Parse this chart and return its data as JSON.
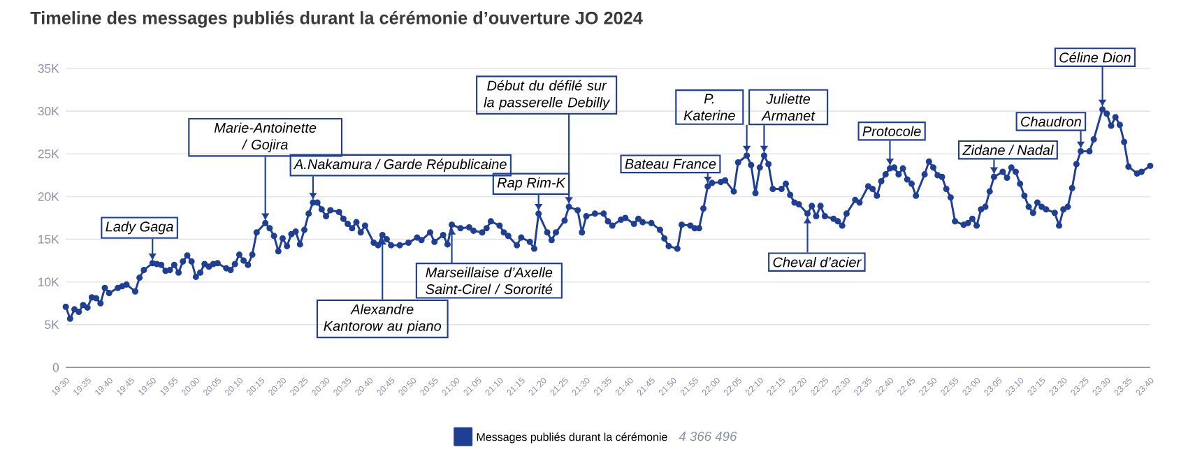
{
  "chart_data": {
    "type": "line",
    "title": "Timeline des messages publiés durant la cérémonie d’ouverture JO 2024",
    "x": [
      19.5,
      19.5167,
      19.5333,
      19.55,
      19.5667,
      19.5833,
      19.6,
      19.6167,
      19.6333,
      19.65,
      19.6667,
      19.7,
      19.7167,
      19.7333,
      19.7667,
      19.7833,
      19.8,
      19.8333,
      19.85,
      19.8667,
      19.8833,
      19.9,
      19.9167,
      19.9333,
      19.95,
      19.9667,
      19.9833,
      20,
      20.0167,
      20.0333,
      20.05,
      20.0667,
      20.0833,
      20.1167,
      20.1333,
      20.15,
      20.1667,
      20.1833,
      20.2,
      20.2167,
      20.2333,
      20.2667,
      20.2833,
      20.3,
      20.3167,
      20.3333,
      20.35,
      20.3667,
      20.3833,
      20.4,
      20.4167,
      20.4333,
      20.45,
      20.4667,
      20.4833,
      20.5,
      20.5167,
      20.55,
      20.5667,
      20.5833,
      20.6,
      20.6167,
      20.6333,
      20.65,
      20.6833,
      20.7,
      20.7167,
      20.7333,
      20.75,
      20.7833,
      20.8167,
      20.85,
      20.8667,
      20.9,
      20.9167,
      20.95,
      20.9667,
      20.9833,
      21.0167,
      21.05,
      21.0667,
      21.1,
      21.1167,
      21.1333,
      21.1667,
      21.1833,
      21.2,
      21.2333,
      21.25,
      21.2833,
      21.3,
      21.3167,
      21.35,
      21.3667,
      21.3833,
      21.4167,
      21.4333,
      21.4667,
      21.4833,
      21.5,
      21.5333,
      21.5667,
      21.5833,
      21.6,
      21.6333,
      21.65,
      21.6833,
      21.7,
      21.7167,
      21.75,
      21.7833,
      21.8,
      21.8167,
      21.85,
      21.8667,
      21.9,
      21.9167,
      21.9333,
      21.95,
      21.9667,
      21.9833,
      22.0167,
      22.0333,
      22.0667,
      22.0833,
      22.1167,
      22.1333,
      22.15,
      22.1667,
      22.1833,
      22.2,
      22.2167,
      22.25,
      22.2667,
      22.2833,
      22.3,
      22.3167,
      22.35,
      22.3667,
      22.3833,
      22.4,
      22.4167,
      22.45,
      22.4667,
      22.4833,
      22.5,
      22.5333,
      22.55,
      22.5833,
      22.6,
      22.6167,
      22.6333,
      22.65,
      22.6667,
      22.6833,
      22.7,
      22.7167,
      22.7333,
      22.75,
      22.7667,
      22.8,
      22.8167,
      22.8333,
      22.85,
      22.8667,
      22.8833,
      22.9,
      22.9167,
      22.95,
      22.9667,
      22.9833,
      23,
      23.0167,
      23.0333,
      23.05,
      23.0667,
      23.1,
      23.1167,
      23.1333,
      23.15,
      23.1667,
      23.1833,
      23.2,
      23.2167,
      23.2333,
      23.25,
      23.2667,
      23.3,
      23.3167,
      23.3333,
      23.35,
      23.3667,
      23.3833,
      23.4,
      23.4333,
      23.45,
      23.4833,
      23.5,
      23.5167,
      23.5333,
      23.55,
      23.5667,
      23.5833,
      23.6167,
      23.6333,
      23.6667
    ],
    "series": [
      {
        "name": "Messages publiés durant la cérémonie",
        "color": "#1f3f94",
        "values": [
          7100,
          5700,
          6800,
          6500,
          7300,
          7000,
          8200,
          8100,
          7500,
          9300,
          8700,
          9300,
          9500,
          9700,
          8900,
          10500,
          11400,
          12200,
          12100,
          12000,
          11300,
          11400,
          12000,
          11100,
          12400,
          13100,
          12400,
          10600,
          11100,
          12100,
          11800,
          12100,
          12200,
          11600,
          11400,
          12100,
          13200,
          12500,
          12000,
          13200,
          15800,
          16900,
          16300,
          15400,
          13600,
          15100,
          14200,
          15600,
          15900,
          14400,
          16100,
          18000,
          19300,
          19300,
          18500,
          17700,
          18400,
          18200,
          17400,
          16800,
          16300,
          17000,
          15800,
          16600,
          14600,
          14300,
          15500,
          15000,
          14300,
          14300,
          14600,
          15200,
          14900,
          15800,
          14700,
          15500,
          14400,
          16700,
          16300,
          16400,
          16000,
          15800,
          16300,
          17100,
          16600,
          15800,
          15400,
          14300,
          15200,
          14700,
          13900,
          18000,
          15800,
          14900,
          15800,
          17200,
          18800,
          18400,
          15800,
          17700,
          18000,
          18000,
          17100,
          16600,
          17300,
          17500,
          16800,
          17400,
          17000,
          16900,
          16100,
          15100,
          14200,
          13900,
          16700,
          16600,
          16300,
          16300,
          18600,
          21200,
          21600,
          21700,
          21900,
          20600,
          24000,
          24800,
          23700,
          20400,
          23400,
          24800,
          23800,
          20900,
          20900,
          21500,
          20200,
          19300,
          19100,
          18000,
          18900,
          17700,
          18900,
          17700,
          17400,
          17100,
          16600,
          18000,
          19600,
          19300,
          21200,
          20900,
          20100,
          21800,
          22600,
          23300,
          23400,
          22600,
          23300,
          22000,
          21500,
          20100,
          22600,
          24100,
          23400,
          22500,
          22300,
          20900,
          19900,
          17100,
          16700,
          16900,
          17400,
          16600,
          18500,
          18800,
          20600,
          22300,
          22900,
          22200,
          23400,
          22900,
          21500,
          20100,
          18800,
          18100,
          19300,
          18800,
          18500,
          18100,
          16600,
          18500,
          18800,
          21000,
          23800,
          25300,
          25300,
          26700,
          30200,
          29700,
          28300,
          29300,
          28400,
          26400,
          23500,
          22700,
          22900,
          23600
        ]
      }
    ],
    "xlim": [
      19.5,
      23.6667
    ],
    "xticks": [
      {
        "value": 19.5,
        "label": "19:30"
      },
      {
        "value": 19.5833,
        "label": "19:35"
      },
      {
        "value": 19.6667,
        "label": "19:40"
      },
      {
        "value": 19.75,
        "label": "19:45"
      },
      {
        "value": 19.8333,
        "label": "19:50"
      },
      {
        "value": 19.9167,
        "label": "19:55"
      },
      {
        "value": 20,
        "label": "20:00"
      },
      {
        "value": 20.0833,
        "label": "20:05"
      },
      {
        "value": 20.1667,
        "label": "20:10"
      },
      {
        "value": 20.25,
        "label": "20:15"
      },
      {
        "value": 20.3333,
        "label": "20:20"
      },
      {
        "value": 20.4167,
        "label": "20:25"
      },
      {
        "value": 20.5,
        "label": "20:30"
      },
      {
        "value": 20.5833,
        "label": "20:35"
      },
      {
        "value": 20.6667,
        "label": "20:40"
      },
      {
        "value": 20.75,
        "label": "20:45"
      },
      {
        "value": 20.8333,
        "label": "20:50"
      },
      {
        "value": 20.9167,
        "label": "20:55"
      },
      {
        "value": 21,
        "label": "21:00"
      },
      {
        "value": 21.0833,
        "label": "21:05"
      },
      {
        "value": 21.1667,
        "label": "21:10"
      },
      {
        "value": 21.25,
        "label": "21:15"
      },
      {
        "value": 21.3333,
        "label": "21:20"
      },
      {
        "value": 21.4167,
        "label": "21:25"
      },
      {
        "value": 21.5,
        "label": "21:30"
      },
      {
        "value": 21.5833,
        "label": "21:35"
      },
      {
        "value": 21.6667,
        "label": "21:40"
      },
      {
        "value": 21.75,
        "label": "21:45"
      },
      {
        "value": 21.8333,
        "label": "21:50"
      },
      {
        "value": 21.9167,
        "label": "21:55"
      },
      {
        "value": 22,
        "label": "22:00"
      },
      {
        "value": 22.0833,
        "label": "22:05"
      },
      {
        "value": 22.1667,
        "label": "22:10"
      },
      {
        "value": 22.25,
        "label": "22:15"
      },
      {
        "value": 22.3333,
        "label": "22:20"
      },
      {
        "value": 22.4167,
        "label": "22:25"
      },
      {
        "value": 22.5,
        "label": "22:30"
      },
      {
        "value": 22.5833,
        "label": "22:35"
      },
      {
        "value": 22.6667,
        "label": "22:40"
      },
      {
        "value": 22.75,
        "label": "22:45"
      },
      {
        "value": 22.8333,
        "label": "22:50"
      },
      {
        "value": 22.9167,
        "label": "22:55"
      },
      {
        "value": 23,
        "label": "23:00"
      },
      {
        "value": 23.0833,
        "label": "23:05"
      },
      {
        "value": 23.1667,
        "label": "23:10"
      },
      {
        "value": 23.25,
        "label": "23:15"
      },
      {
        "value": 23.3333,
        "label": "23:20"
      },
      {
        "value": 23.4167,
        "label": "23:25"
      },
      {
        "value": 23.5,
        "label": "23:30"
      },
      {
        "value": 23.5833,
        "label": "23:35"
      },
      {
        "value": 23.6667,
        "label": "23:40"
      }
    ],
    "ylim": [
      0,
      35000
    ],
    "yticks": [
      0,
      {
        "value": 5000,
        "label": "5K"
      },
      {
        "value": 10000,
        "label": "10K"
      },
      {
        "value": 15000,
        "label": "15K"
      },
      {
        "value": 20000,
        "label": "20K"
      },
      {
        "value": 25000,
        "label": "25K"
      },
      {
        "value": 30000,
        "label": "30K"
      },
      {
        "value": 35000,
        "label": "35K"
      }
    ],
    "grid": "y",
    "legend": "bottom",
    "marker": "circle",
    "line_style": "solid",
    "annotations": [
      {
        "text": "Lady Gaga",
        "x": 19.8333,
        "y": 12200
      },
      {
        "text": "Marie-Antoinette / Gojira",
        "x": 20.2667,
        "y": 16900
      },
      {
        "text": "A.Nakamura /  Garde Républicaine",
        "x": 20.45,
        "y": 19300
      },
      {
        "text": "Alexandre Kantorow au piano",
        "x": 20.7167,
        "y": 15500
      },
      {
        "text": "Marseillaise d’Axelle Saint-Cirel / Sororité",
        "x": 20.9833,
        "y": 16700
      },
      {
        "text": "Rap Rim-K",
        "x": 21.3167,
        "y": 18000
      },
      {
        "text": "Début du défilé sur la passerelle Debilly",
        "x": 21.4333,
        "y": 18800
      },
      {
        "text": "Bateau France",
        "x": 21.9667,
        "y": 21200
      },
      {
        "text": "P. Katerine",
        "x": 22.1167,
        "y": 24800
      },
      {
        "text": "Juliette Armanet",
        "x": 22.1833,
        "y": 24800
      },
      {
        "text": "Cheval d’acier",
        "x": 22.35,
        "y": 18000
      },
      {
        "text": "Protocole",
        "x": 22.6667,
        "y": 23300
      },
      {
        "text": "Zidane / Nadal",
        "x": 23.0667,
        "y": 22300
      },
      {
        "text": "Chaudron",
        "x": 23.4,
        "y": 25300
      },
      {
        "text": "Céline Dion",
        "x": 23.4833,
        "y": 30200
      },
      "4 366 496"
    ]
  }
}
